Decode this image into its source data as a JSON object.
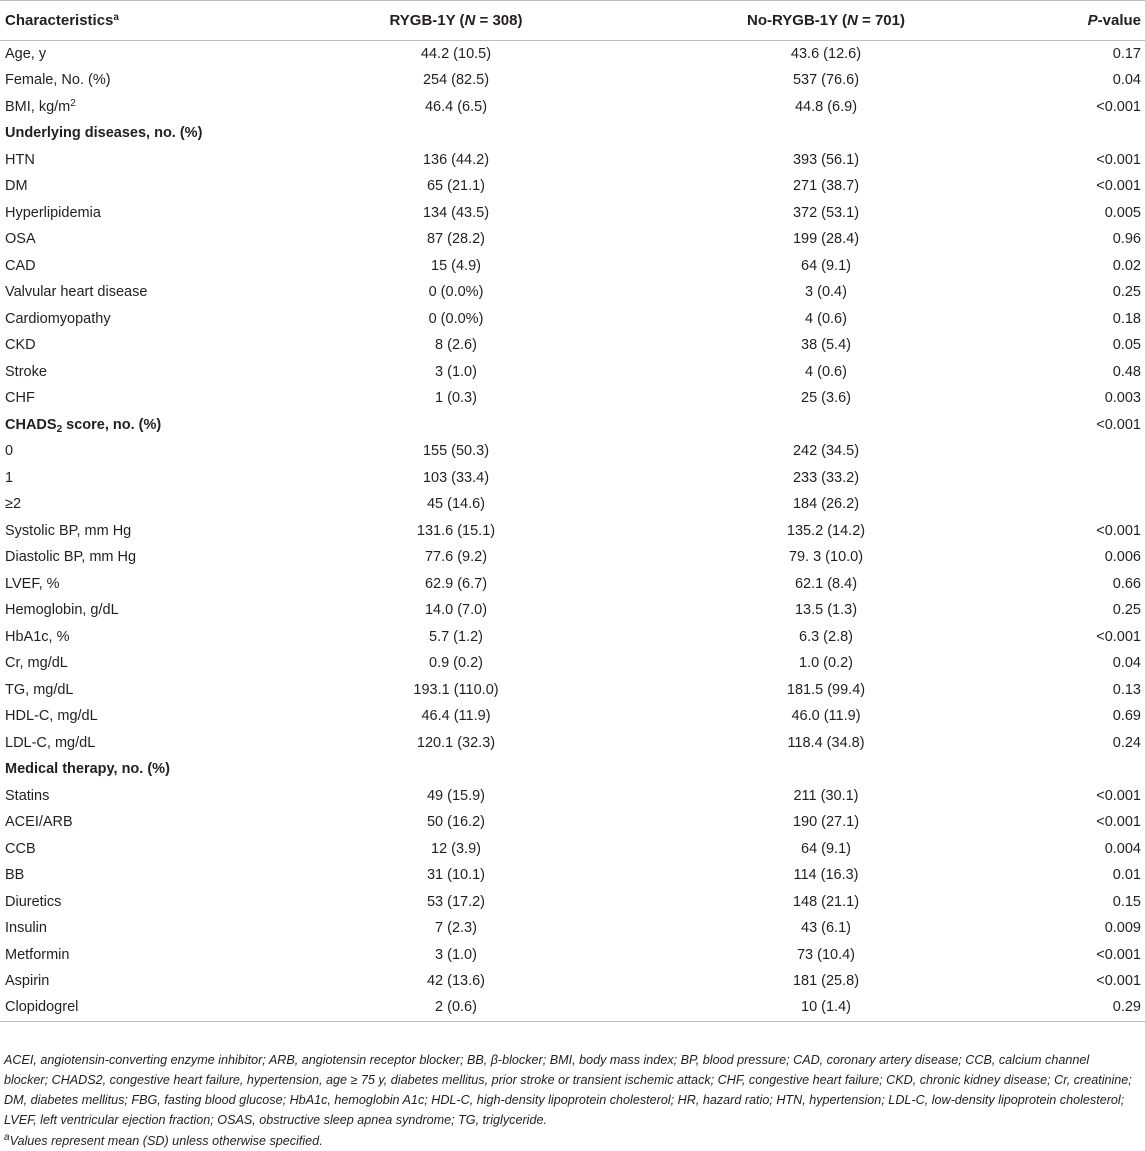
{
  "header": {
    "characteristics": "Characteristics",
    "characteristics_sup": "a",
    "rygb_prefix": "RYGB-1Y (",
    "rygb_n": "N",
    "rygb_suffix": " = 308)",
    "norygb_prefix": "No-RYGB-1Y (",
    "norygb_n": "N",
    "norygb_suffix": " = 701)",
    "p_italic": "P",
    "p_suffix": "-value"
  },
  "rows": [
    {
      "label": "Age, y",
      "rygb": "44.2 (10.5)",
      "norygb": "43.6 (12.6)",
      "p": "0.17"
    },
    {
      "label": "Female, No. (%)",
      "rygb": "254 (82.5)",
      "norygb": "537 (76.6)",
      "p": "0.04"
    },
    {
      "label": "BMI, kg/m",
      "label_sup": "2",
      "rygb": "46.4 (6.5)",
      "norygb": "44.8 (6.9)",
      "p": "<0.001"
    },
    {
      "label": "Underlying diseases, no. (%)",
      "section": true,
      "rygb": "",
      "norygb": "",
      "p": ""
    },
    {
      "label": "HTN",
      "rygb": "136 (44.2)",
      "norygb": "393 (56.1)",
      "p": "<0.001"
    },
    {
      "label": "DM",
      "rygb": "65 (21.1)",
      "norygb": "271 (38.7)",
      "p": "<0.001"
    },
    {
      "label": "Hyperlipidemia",
      "rygb": "134 (43.5)",
      "norygb": "372 (53.1)",
      "p": "0.005"
    },
    {
      "label": "OSA",
      "rygb": "87 (28.2)",
      "norygb": "199 (28.4)",
      "p": "0.96"
    },
    {
      "label": "CAD",
      "rygb": "15 (4.9)",
      "norygb": "64 (9.1)",
      "p": "0.02"
    },
    {
      "label": "Valvular heart disease",
      "rygb": "0 (0.0%)",
      "norygb": "3 (0.4)",
      "p": "0.25"
    },
    {
      "label": "Cardiomyopathy",
      "rygb": "0 (0.0%)",
      "norygb": "4 (0.6)",
      "p": "0.18"
    },
    {
      "label": "CKD",
      "rygb": "8 (2.6)",
      "norygb": "38 (5.4)",
      "p": "0.05"
    },
    {
      "label": "Stroke",
      "rygb": "3 (1.0)",
      "norygb": "4 (0.6)",
      "p": "0.48"
    },
    {
      "label": "CHF",
      "rygb": "1 (0.3)",
      "norygb": "25 (3.6)",
      "p": "0.003"
    },
    {
      "label": "CHADS",
      "label_sub": "2",
      "label_after": " score, no. (%)",
      "section": true,
      "rygb": "",
      "norygb": "",
      "p": "<0.001"
    },
    {
      "label": "0",
      "rygb": "155 (50.3)",
      "norygb": "242 (34.5)",
      "p": ""
    },
    {
      "label": "1",
      "rygb": "103 (33.4)",
      "norygb": "233 (33.2)",
      "p": ""
    },
    {
      "label": "≥2",
      "rygb": "45 (14.6)",
      "norygb": "184 (26.2)",
      "p": ""
    },
    {
      "label": "Systolic BP, mm Hg",
      "rygb": "131.6 (15.1)",
      "norygb": "135.2 (14.2)",
      "p": "<0.001"
    },
    {
      "label": "Diastolic BP, mm Hg",
      "rygb": "77.6 (9.2)",
      "norygb": "79. 3 (10.0)",
      "p": "0.006"
    },
    {
      "label": "LVEF, %",
      "rygb": "62.9 (6.7)",
      "norygb": "62.1 (8.4)",
      "p": "0.66"
    },
    {
      "label": "Hemoglobin, g/dL",
      "rygb": "14.0 (7.0)",
      "norygb": "13.5 (1.3)",
      "p": "0.25"
    },
    {
      "label": "HbA1c, %",
      "rygb": "5.7 (1.2)",
      "norygb": "6.3 (2.8)",
      "p": "<0.001"
    },
    {
      "label": "Cr, mg/dL",
      "rygb": "0.9 (0.2)",
      "norygb": "1.0 (0.2)",
      "p": "0.04"
    },
    {
      "label": "TG, mg/dL",
      "rygb": "193.1 (110.0)",
      "norygb": "181.5 (99.4)",
      "p": "0.13"
    },
    {
      "label": "HDL-C, mg/dL",
      "rygb": "46.4 (11.9)",
      "norygb": "46.0 (11.9)",
      "p": "0.69"
    },
    {
      "label": "LDL-C, mg/dL",
      "rygb": "120.1 (32.3)",
      "norygb": "118.4 (34.8)",
      "p": "0.24"
    },
    {
      "label": "Medical therapy, no. (%)",
      "section": true,
      "rygb": "",
      "norygb": "",
      "p": ""
    },
    {
      "label": "Statins",
      "rygb": "49 (15.9)",
      "norygb": "211 (30.1)",
      "p": "<0.001"
    },
    {
      "label": "ACEI/ARB",
      "rygb": "50 (16.2)",
      "norygb": "190 (27.1)",
      "p": "<0.001"
    },
    {
      "label": "CCB",
      "rygb": "12 (3.9)",
      "norygb": "64 (9.1)",
      "p": "0.004"
    },
    {
      "label": "BB",
      "rygb": "31 (10.1)",
      "norygb": "114 (16.3)",
      "p": "0.01"
    },
    {
      "label": "Diuretics",
      "rygb": "53 (17.2)",
      "norygb": "148 (21.1)",
      "p": "0.15"
    },
    {
      "label": "Insulin",
      "rygb": "7 (2.3)",
      "norygb": "43 (6.1)",
      "p": "0.009"
    },
    {
      "label": "Metformin",
      "rygb": "3 (1.0)",
      "norygb": "73 (10.4)",
      "p": "<0.001"
    },
    {
      "label": "Aspirin",
      "rygb": "42 (13.6)",
      "norygb": "181 (25.8)",
      "p": "<0.001"
    },
    {
      "label": "Clopidogrel",
      "rygb": "2 (0.6)",
      "norygb": "10 (1.4)",
      "p": "0.29"
    }
  ],
  "footnote": {
    "abbreviations": "ACEI, angiotensin-converting enzyme inhibitor; ARB, angiotensin receptor blocker; BB, β-blocker; BMI, body mass index; BP, blood pressure; CAD, coronary artery disease; CCB, calcium channel blocker; CHADS2, congestive heart failure, hypertension, age ≥ 75 y, diabetes mellitus, prior stroke or transient ischemic attack; CHF, congestive heart failure; CKD, chronic kidney disease; Cr, creatinine; DM, diabetes mellitus; FBG, fasting blood glucose; HbA1c, hemoglobin A1c; HDL-C, high-density lipoprotein cholesterol; HR, hazard ratio; HTN, hypertension; LDL-C, low-density lipoprotein cholesterol; LVEF, left ventricular ejection fraction; OSAS, obstructive sleep apnea syndrome; TG, triglyceride.",
    "marker": "a",
    "note": "Values represent mean (SD) unless otherwise specified."
  }
}
